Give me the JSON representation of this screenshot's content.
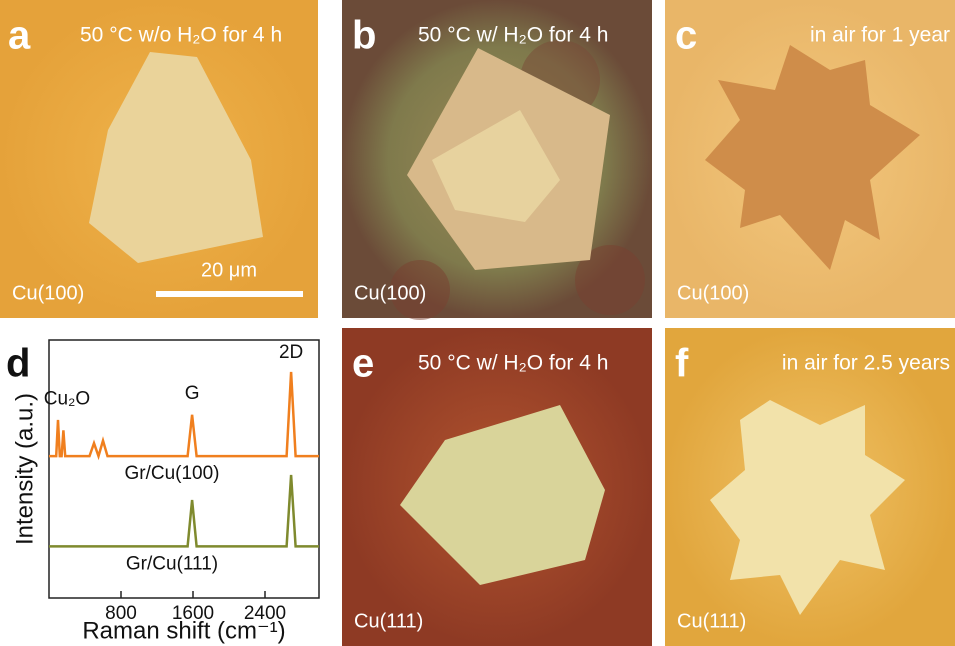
{
  "panels": [
    {
      "letter": "a",
      "condition": "50 °C w/o H₂O for 4 h",
      "substrate": "Cu(100)",
      "scale_bar": "20 μm"
    },
    {
      "letter": "b",
      "condition": "50 °C w/ H₂O for 4 h",
      "substrate": "Cu(100)"
    },
    {
      "letter": "c",
      "condition": "in air for 1 year",
      "substrate": "Cu(100)"
    },
    {
      "letter": "e",
      "condition": "50 °C w/ H₂O for 4 h",
      "substrate": "Cu(111)"
    },
    {
      "letter": "f",
      "condition": "in air for 2.5 years",
      "substrate": "Cu(111)"
    }
  ],
  "chart_data": {
    "type": "line",
    "letter": "d",
    "xlabel": "Raman shift (cm⁻¹)",
    "ylabel": "Intensity (a.u.)",
    "annotations": [
      {
        "text": "Cu₂O",
        "x": 200,
        "y": 7.7
      },
      {
        "text": "G",
        "x": 1590,
        "y": 7.9
      },
      {
        "text": "2D",
        "x": 2690,
        "y": 9.5
      }
    ],
    "x": [
      0,
      80,
      100,
      120,
      140,
      160,
      180,
      450,
      500,
      550,
      600,
      650,
      1540,
      1590,
      1640,
      2640,
      2690,
      2740,
      3000
    ],
    "series": [
      {
        "name": "Gr/Cu(100)",
        "color": "#f07f1e",
        "values": [
          5.5,
          5.5,
          6.9,
          5.5,
          5.5,
          6.5,
          5.5,
          5.5,
          6.0,
          5.5,
          6.1,
          5.5,
          5.5,
          7.1,
          5.5,
          5.5,
          8.76,
          5.5,
          5.5
        ]
      },
      {
        "name": "Gr/Cu(111)",
        "color": "#7f8a2e",
        "values": [
          2.0,
          2.0,
          2.0,
          2.0,
          2.0,
          2.0,
          2.0,
          2.0,
          2.0,
          2.0,
          2.0,
          2.0,
          2.0,
          3.8,
          2.0,
          2.0,
          4.77,
          2.0,
          2.0
        ]
      }
    ],
    "xlim": [
      0,
      3000
    ],
    "xticks": [
      800,
      1600,
      2400
    ],
    "ylim": [
      0,
      10
    ]
  }
}
